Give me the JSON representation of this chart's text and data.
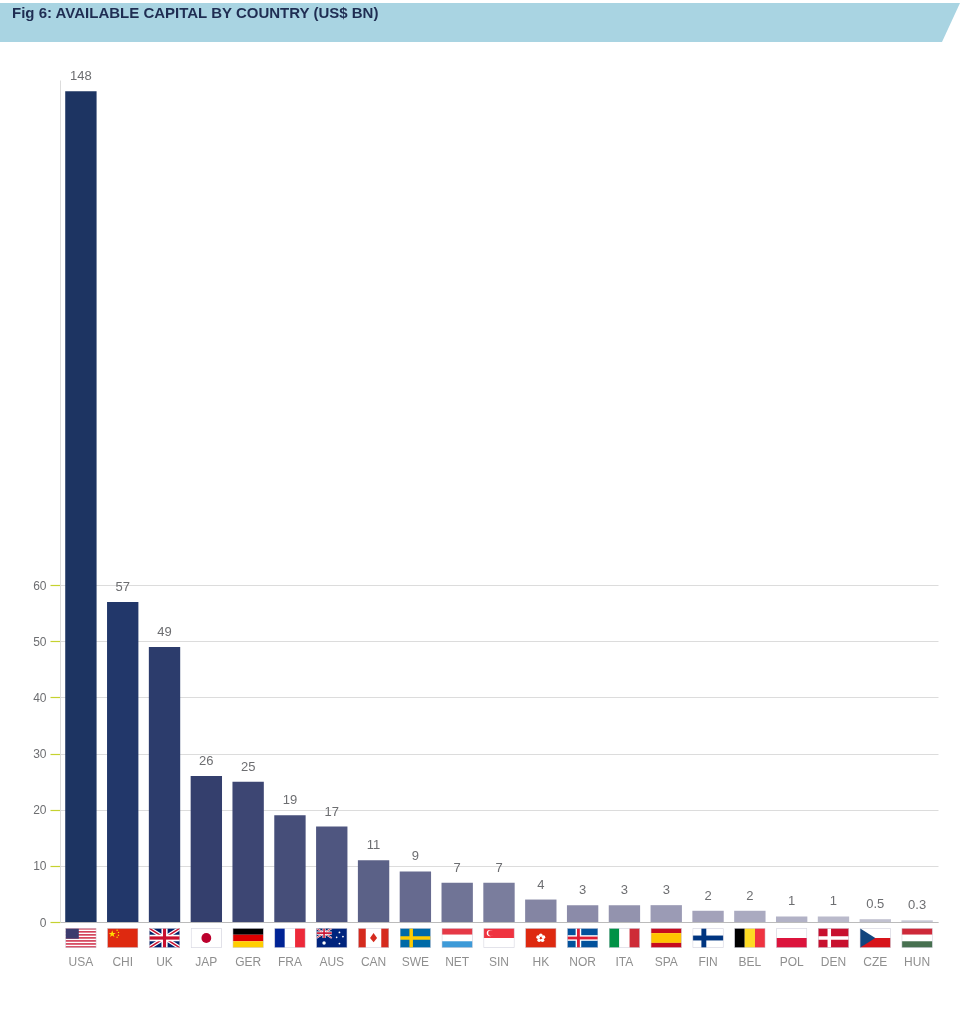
{
  "chart_data": {
    "type": "bar",
    "title": "Fig 6: AVAILABLE CAPITAL BY COUNTRY (US$ BN)",
    "categories": [
      "USA",
      "CHI",
      "UK",
      "JAP",
      "GER",
      "FRA",
      "AUS",
      "CAN",
      "SWE",
      "NET",
      "SIN",
      "HK",
      "NOR",
      "ITA",
      "SPA",
      "FIN",
      "BEL",
      "POL",
      "DEN",
      "CZE",
      "HUN"
    ],
    "values": [
      148,
      57,
      49,
      26,
      25,
      19,
      17,
      11,
      9,
      7,
      7,
      4,
      3,
      3,
      3,
      2,
      2,
      1,
      1,
      0.5,
      0.3
    ],
    "colors": [
      "#1d3462",
      "#22376a",
      "#2c3c6c",
      "#343f6d",
      "#3d4673",
      "#464e79",
      "#4f5680",
      "#5b6187",
      "#666a8f",
      "#707496",
      "#7a7d9d",
      "#8485a3",
      "#8b8ba9",
      "#9393ae",
      "#9b9bb5",
      "#a3a2ba",
      "#aaaac0",
      "#b2b2c6",
      "#babacb",
      "#c1c1d0",
      "#c7c7d5"
    ],
    "ylim": [
      0,
      150
    ],
    "yticks": [
      0,
      10,
      20,
      30,
      40,
      50,
      60
    ],
    "grid": true,
    "data_labels": true
  }
}
